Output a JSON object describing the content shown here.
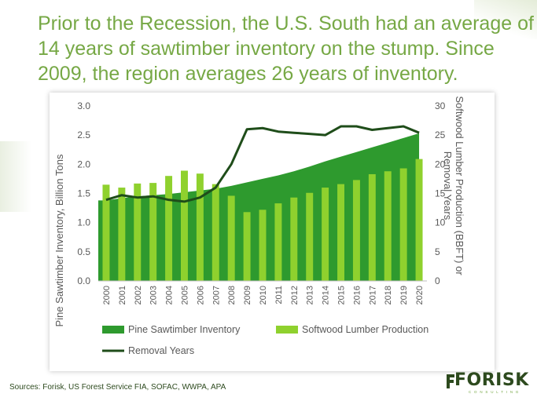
{
  "title_lines": [
    "Prior to the Recession, the U.S. South had an average of",
    "14 years of sawtimber inventory on the stump. Since",
    "2009, the region averages 26 years of inventory."
  ],
  "sources": "Sources: Forisk, US Forest Service FIA, SOFAC, WWPA, APA",
  "logo": {
    "main": "FORISK",
    "sub": "CONSULTING"
  },
  "colors": {
    "title": "#76a845",
    "inventory": "#2e9a2e",
    "production": "#8fd12e",
    "removal": "#1f4d1a",
    "axis_text": "#595959"
  },
  "chart_data": {
    "type": "bar",
    "categories": [
      "2000",
      "2001",
      "2002",
      "2003",
      "2004",
      "2005",
      "2006",
      "2007",
      "2008",
      "2009",
      "2010",
      "2011",
      "2012",
      "2013",
      "2014",
      "2015",
      "2016",
      "2017",
      "2018",
      "2019",
      "2020"
    ],
    "series": [
      {
        "name": "Pine Sawtimber Inventory",
        "type": "area",
        "axis": "left",
        "values": [
          1.38,
          1.42,
          1.45,
          1.47,
          1.49,
          1.52,
          1.55,
          1.58,
          1.63,
          1.69,
          1.75,
          1.81,
          1.88,
          1.96,
          2.05,
          2.13,
          2.21,
          2.29,
          2.37,
          2.45,
          2.53
        ]
      },
      {
        "name": "Softwood Lumber Production",
        "type": "bar",
        "axis": "left",
        "values": [
          1.65,
          1.6,
          1.67,
          1.68,
          1.8,
          1.89,
          1.84,
          1.66,
          1.46,
          1.18,
          1.22,
          1.33,
          1.43,
          1.51,
          1.6,
          1.66,
          1.73,
          1.83,
          1.88,
          1.93,
          2.09
        ]
      },
      {
        "name": "Removal Years",
        "type": "line",
        "axis": "right",
        "values": [
          13.9,
          14.7,
          14.3,
          14.5,
          13.9,
          13.6,
          14.3,
          16.0,
          20.0,
          26.0,
          26.2,
          25.6,
          25.4,
          25.2,
          25.0,
          26.5,
          26.5,
          25.9,
          26.2,
          26.5,
          25.4
        ]
      }
    ],
    "y_left": {
      "label": "Pine Sawtimber Inventory, Billion Tons",
      "range": [
        0,
        3.0
      ],
      "ticks": [
        "0.0",
        "0.5",
        "1.0",
        "1.5",
        "2.0",
        "2.5",
        "3.0"
      ]
    },
    "y_right": {
      "label": "Softwood Lumber Production (BBFT) or Removal Years",
      "range": [
        0,
        30
      ],
      "ticks": [
        "0",
        "5",
        "10",
        "15",
        "20",
        "25",
        "30"
      ]
    },
    "grid": false,
    "legend": {
      "placement": "bottom",
      "entries": [
        "Pine Sawtimber Inventory",
        "Softwood Lumber Production",
        "Removal Years"
      ]
    }
  }
}
